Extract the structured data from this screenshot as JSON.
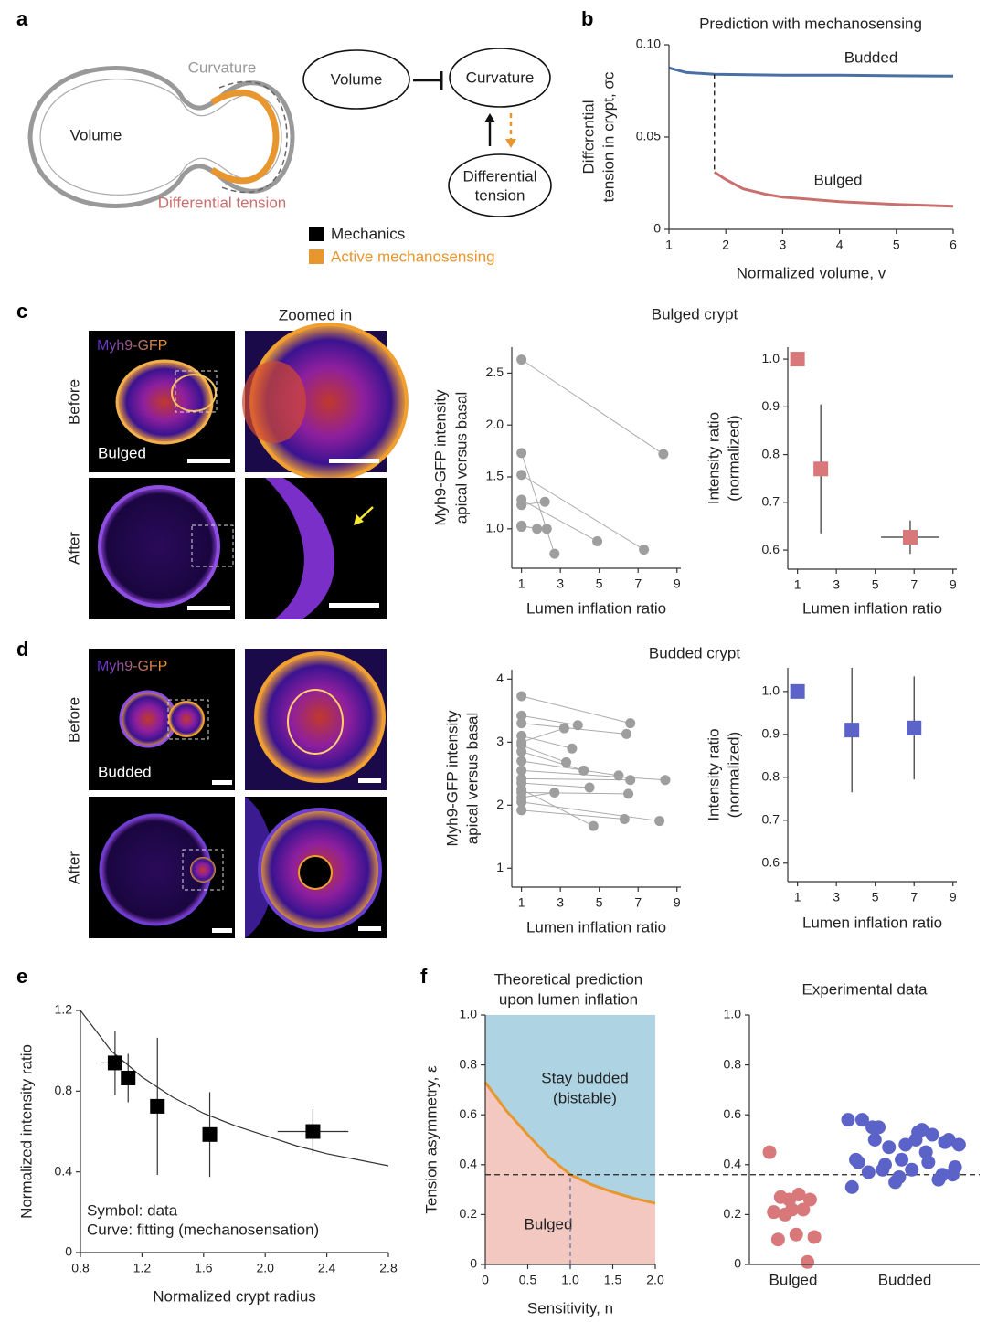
{
  "panel_labels": [
    "a",
    "b",
    "c",
    "d",
    "e",
    "f"
  ],
  "diagram": {
    "schematic": {
      "volume": "Volume",
      "curvature": "Curvature",
      "differential_tension": "Differential tension"
    },
    "flow": {
      "volume": "Volume",
      "curvature": "Curvature",
      "differential_tension": [
        "Differential",
        "tension"
      ]
    },
    "legend": [
      "Mechanics",
      "Active mechanosensing"
    ]
  },
  "images": {
    "zoomed_in": "Zoomed in",
    "c": {
      "stain": "Myh9-GFP",
      "before": "Before",
      "after": "After",
      "shape": "Bulged"
    },
    "d": {
      "stain": "Myh9-GFP",
      "before": "Before",
      "after": "After",
      "shape": "Budded"
    }
  },
  "chart_data": [
    {
      "type": "line",
      "title": "Prediction with mechanosensing",
      "xlabel": "Normalized volume, v",
      "ylabel": [
        "Differential",
        "tension in crypt, σc"
      ],
      "xlim": [
        1,
        6
      ],
      "ylim": [
        0,
        0.1
      ],
      "xticks": [
        1,
        2,
        3,
        4,
        5,
        6
      ],
      "yticks": [
        0,
        0.05,
        {
          "value": 0.1,
          "label": "0.10"
        }
      ],
      "series": [
        {
          "name": "Budded",
          "color": "#4a6fa5",
          "x": [
            1,
            1.3,
            1.8,
            3,
            4,
            5,
            6
          ],
          "values": [
            0.0875,
            0.085,
            0.084,
            0.0835,
            0.0835,
            0.0832,
            0.083
          ]
        },
        {
          "name": "Bulged",
          "color": "#c9706f",
          "x": [
            1.8,
            2,
            2.3,
            2.7,
            3,
            4,
            5,
            6
          ],
          "values": [
            0.031,
            0.027,
            0.022,
            0.019,
            0.0175,
            0.015,
            0.0135,
            0.0125
          ]
        }
      ]
    },
    {
      "type": "paired-scatter",
      "title": "Bulged crypt",
      "xlabel": "Lumen inflation ratio",
      "ylabel": [
        "Myh9-GFP intensity",
        "apical versus basal"
      ],
      "xlim": [
        0.5,
        9.2
      ],
      "ylim": [
        0.62,
        2.75
      ],
      "xticks": [
        1,
        3,
        5,
        7,
        9
      ],
      "yticks": [
        {
          "value": 1,
          "label": "1.0"
        },
        1.5,
        {
          "value": 2,
          "label": "2.0"
        },
        2.5
      ],
      "color": "#9e9e9e",
      "x_before": [
        1,
        1,
        1,
        1,
        1,
        1,
        1
      ],
      "before": [
        2.63,
        1.73,
        1.52,
        1.28,
        1.23,
        1.03,
        1.02
      ],
      "x_after": [
        8.3,
        2.7,
        7.3,
        4.9,
        2.2,
        1.8,
        2.3
      ],
      "after": [
        1.72,
        0.76,
        0.8,
        0.88,
        1.26,
        1.0,
        1.0
      ]
    },
    {
      "type": "errorbar",
      "xlabel": "Lumen inflation ratio",
      "ylabel": [
        "Intensity ratio",
        "(normalized)"
      ],
      "xlim": [
        0.5,
        9.2
      ],
      "ylim": [
        0.56,
        1.025
      ],
      "xticks": [
        1,
        3,
        5,
        7,
        9
      ],
      "yticks": [
        0.6,
        0.7,
        0.8,
        0.9,
        {
          "value": 1,
          "label": "1.0"
        }
      ],
      "color": "#d9787a",
      "x": [
        1,
        2.2,
        6.8
      ],
      "values": [
        1,
        0.77,
        0.627
      ],
      "yerr": [
        0,
        0.135,
        0.035
      ],
      "xerr": [
        0,
        0.1,
        1.5
      ]
    },
    {
      "type": "paired-scatter",
      "title": "Budded crypt",
      "xlabel": "Lumen inflation ratio",
      "ylabel": [
        "Myh9-GFP intensity",
        "apical versus basal"
      ],
      "xlim": [
        0.5,
        9.2
      ],
      "ylim": [
        0.7,
        4.15
      ],
      "xticks": [
        1,
        3,
        5,
        7,
        9
      ],
      "yticks": [
        1,
        2,
        3,
        4
      ],
      "color": "#9e9e9e",
      "x_before": [
        1,
        1,
        1,
        1,
        1,
        1,
        1,
        1,
        1,
        1,
        1,
        1,
        1,
        1,
        1,
        1
      ],
      "before": [
        3.73,
        3.42,
        3.3,
        3.1,
        3.0,
        2.95,
        2.85,
        2.7,
        2.55,
        2.42,
        2.35,
        2.25,
        2.2,
        2.12,
        2.05,
        1.92
      ],
      "x_after": [
        6.6,
        3.9,
        6.4,
        3.6,
        3.2,
        3.3,
        4.2,
        6.0,
        8.4,
        6.6,
        4.5,
        4.7,
        6.5,
        2.7,
        8.1,
        6.3
      ],
      "after": [
        3.3,
        3.27,
        3.13,
        2.9,
        3.22,
        2.68,
        2.55,
        2.47,
        2.4,
        2.4,
        2.28,
        1.67,
        2.18,
        2.2,
        1.75,
        1.78
      ]
    },
    {
      "type": "errorbar",
      "xlabel": "Lumen inflation ratio",
      "ylabel": [
        "Intensity ratio",
        "(normalized)"
      ],
      "xlim": [
        0.5,
        9.2
      ],
      "ylim": [
        0.557,
        1.055
      ],
      "xticks": [
        1,
        3,
        5,
        7,
        9
      ],
      "yticks": [
        0.6,
        0.7,
        0.8,
        0.9,
        {
          "value": 1,
          "label": "1.0"
        }
      ],
      "color": "#5b63c9",
      "x": [
        1,
        3.8,
        7
      ],
      "values": [
        1,
        0.91,
        0.915
      ],
      "yerr": [
        0,
        0.145,
        0.12
      ],
      "xerr": [
        0,
        0.3,
        0.3
      ]
    },
    {
      "type": "errorbar-fit",
      "xlabel": "Normalized crypt radius",
      "ylabel": [
        "Normalized intensity ratio"
      ],
      "xlim": [
        0.8,
        2.8
      ],
      "ylim": [
        0,
        1.2
      ],
      "xticks": [
        0.8,
        1.2,
        1.6,
        {
          "value": 2,
          "label": "2.0"
        },
        2.4,
        2.8
      ],
      "yticks": [
        0,
        0.4,
        0.8,
        1.2
      ],
      "color": "#000000",
      "x": [
        1.025,
        1.11,
        1.3,
        1.64,
        2.31
      ],
      "values": [
        0.94,
        0.865,
        0.725,
        0.585,
        0.6
      ],
      "xerr": [
        0.09,
        0.03,
        0.03,
        0.03,
        0.23
      ],
      "yerr": [
        0.16,
        0.12,
        0.34,
        0.21,
        0.11
      ],
      "fit": {
        "x": [
          0.8,
          1,
          1.2,
          1.4,
          1.6,
          1.8,
          2,
          2.2,
          2.4,
          2.6,
          2.8
        ],
        "values": [
          1.2,
          1.0,
          0.87,
          0.77,
          0.69,
          0.63,
          0.58,
          0.53,
          0.49,
          0.46,
          0.43
        ]
      },
      "annotations": [
        "Symbol: data",
        "Curve: fitting (mechanosensation)"
      ]
    },
    {
      "type": "region",
      "title": [
        "Theoretical prediction",
        "upon lumen inflation"
      ],
      "xlabel": "Sensitivity, n",
      "ylabel": [
        "Tension asymmetry, ε"
      ],
      "xlim": [
        0,
        2
      ],
      "ylim": [
        0,
        1
      ],
      "xticks": [
        0,
        0.5,
        {
          "value": 1,
          "label": "1.0"
        },
        1.5,
        {
          "value": 2,
          "label": "2.0"
        }
      ],
      "yticks": [
        0,
        0.2,
        0.4,
        0.6,
        0.8,
        {
          "value": 1,
          "label": "1.0"
        }
      ],
      "color": "#e8962e",
      "x": [
        0,
        0.25,
        0.5,
        0.75,
        1,
        1.25,
        1.5,
        1.75,
        2
      ],
      "values": [
        0.73,
        0.615,
        0.52,
        0.43,
        0.36,
        0.32,
        0.29,
        0.265,
        0.245
      ],
      "threshold": 0.36,
      "regions": [
        {
          "label": [
            "Stay budded",
            "(bistable)"
          ],
          "color": "#aed3e3"
        },
        {
          "label": [
            "Bulged"
          ],
          "color": "#f2c8c0"
        }
      ]
    },
    {
      "type": "strip",
      "title": "Experimental data",
      "ylim": [
        0,
        1
      ],
      "yticks": [
        0,
        0.2,
        0.4,
        0.6,
        0.8,
        {
          "value": 1,
          "label": "1.0"
        }
      ],
      "categories": [
        "Bulged",
        "Budded"
      ],
      "colors": [
        "#d9787a",
        "#5b63c9"
      ],
      "values": [
        [
          0.45,
          0.28,
          0.27,
          0.26,
          0.22,
          0.21,
          0.22,
          0.2,
          0.11,
          0.12,
          0.1,
          0.01,
          0.26
        ],
        [
          0.58,
          0.53,
          0.5,
          0.49,
          0.42,
          0.41,
          0.41,
          0.4,
          0.39,
          0.38,
          0.37,
          0.34,
          0.33,
          0.31,
          0.54,
          0.55,
          0.5,
          0.48,
          0.58,
          0.52,
          0.47,
          0.48,
          0.5,
          0.55,
          0.36,
          0.35,
          0.42,
          0.45,
          0.38,
          0.36
        ]
      ]
    }
  ]
}
